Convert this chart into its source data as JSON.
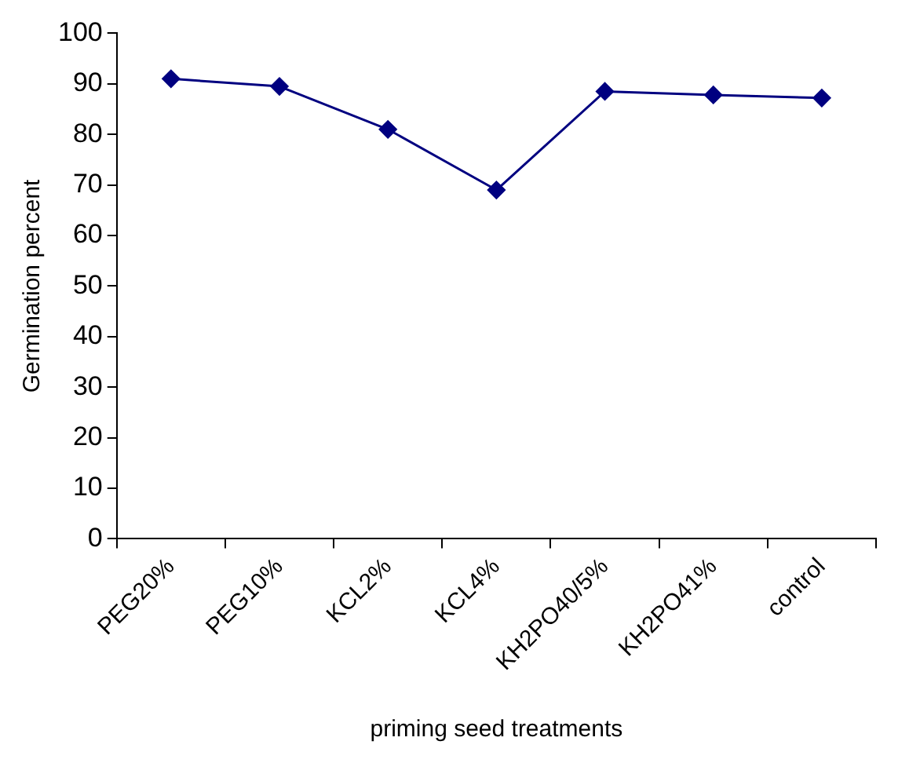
{
  "chart_data": {
    "type": "line",
    "xlabel": "priming seed treatments",
    "ylabel": "Germination percent",
    "categories": [
      "PEG20%",
      "PEG10%",
      "KCL2%",
      "KCL4%",
      "KH2PO40/5%",
      "KH2PO41%",
      "control"
    ],
    "series": [
      {
        "color": "#000080",
        "values": [
          91,
          89.5,
          81,
          69,
          88.5,
          87.8,
          87.2
        ]
      }
    ],
    "ylim": [
      0,
      100
    ],
    "yticks": [
      0,
      10,
      20,
      30,
      40,
      50,
      60,
      70,
      80,
      90,
      100
    ],
    "grid": false,
    "legend": false,
    "marker": "diamond",
    "line_style": "solid"
  }
}
